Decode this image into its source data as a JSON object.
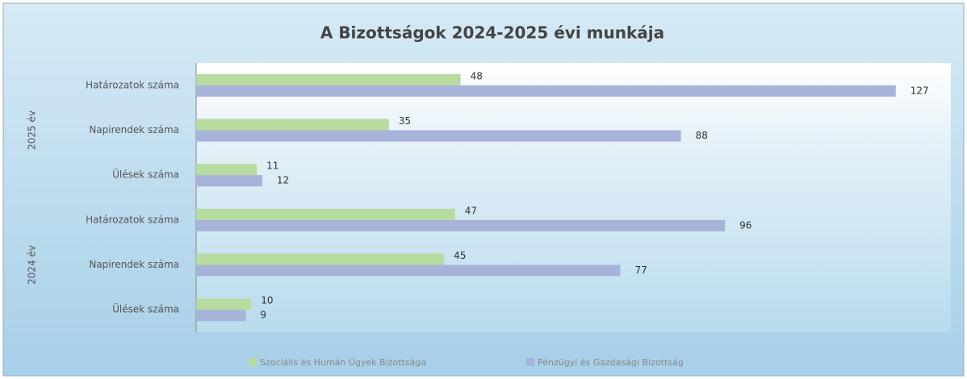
{
  "chart_data": {
    "type": "bar",
    "orientation": "horizontal",
    "title": "A Bizottságok 2024-2025 évi munkája",
    "groups": [
      {
        "name": "2025 év",
        "size": 3
      },
      {
        "name": "2024 év",
        "size": 3
      }
    ],
    "categories": [
      "Határozatok száma",
      "Napirendek száma",
      "Ülések száma",
      "Határozatok száma",
      "Napirendek száma",
      "Ülések száma"
    ],
    "series": [
      {
        "name": "Szociális és Humán Ügyek Bizottsága",
        "color": "#b8dba0",
        "values": [
          48,
          35,
          11,
          47,
          45,
          10
        ]
      },
      {
        "name": "Pénzügyi és Gazdasági Bizottság",
        "color": "#a8b3d9",
        "values": [
          127,
          88,
          12,
          96,
          77,
          9
        ]
      }
    ],
    "xlim": [
      0,
      137
    ],
    "legend": "bottom"
  }
}
